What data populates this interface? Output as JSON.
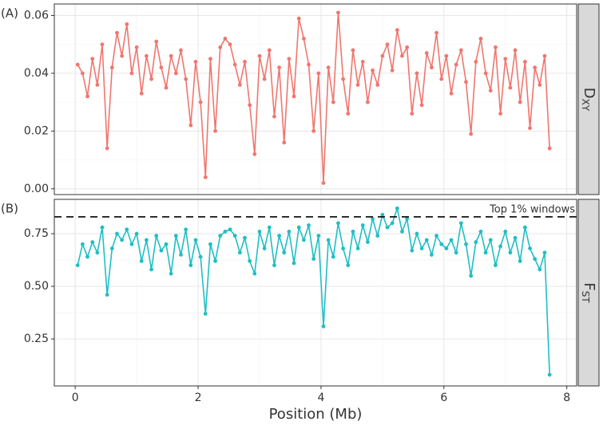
{
  "chart_data": [
    {
      "type": "line",
      "panel_label": "(A)",
      "strip": {
        "main": "D",
        "sub": "XY"
      },
      "color": "#f0766e",
      "x": [
        0.04,
        0.12,
        0.2,
        0.28,
        0.36,
        0.44,
        0.52,
        0.6,
        0.68,
        0.76,
        0.84,
        0.92,
        1.0,
        1.08,
        1.16,
        1.24,
        1.32,
        1.4,
        1.48,
        1.56,
        1.64,
        1.72,
        1.8,
        1.88,
        1.96,
        2.04,
        2.12,
        2.2,
        2.28,
        2.36,
        2.44,
        2.52,
        2.6,
        2.68,
        2.76,
        2.84,
        2.92,
        3.0,
        3.08,
        3.16,
        3.24,
        3.32,
        3.4,
        3.48,
        3.56,
        3.64,
        3.72,
        3.8,
        3.88,
        3.96,
        4.04,
        4.12,
        4.2,
        4.28,
        4.36,
        4.44,
        4.52,
        4.6,
        4.68,
        4.76,
        4.84,
        4.92,
        5.0,
        5.08,
        5.16,
        5.24,
        5.32,
        5.4,
        5.48,
        5.56,
        5.64,
        5.72,
        5.8,
        5.88,
        5.96,
        6.04,
        6.12,
        6.2,
        6.28,
        6.36,
        6.44,
        6.52,
        6.6,
        6.68,
        6.76,
        6.84,
        6.92,
        7.0,
        7.08,
        7.16,
        7.24,
        7.32,
        7.4,
        7.48,
        7.56,
        7.64,
        7.72
      ],
      "values": [
        0.043,
        0.04,
        0.032,
        0.045,
        0.036,
        0.05,
        0.014,
        0.042,
        0.054,
        0.046,
        0.057,
        0.04,
        0.049,
        0.033,
        0.046,
        0.038,
        0.051,
        0.042,
        0.035,
        0.046,
        0.04,
        0.048,
        0.038,
        0.022,
        0.044,
        0.03,
        0.004,
        0.045,
        0.02,
        0.049,
        0.052,
        0.05,
        0.043,
        0.036,
        0.044,
        0.029,
        0.012,
        0.046,
        0.038,
        0.048,
        0.025,
        0.042,
        0.016,
        0.045,
        0.032,
        0.059,
        0.052,
        0.043,
        0.02,
        0.04,
        0.002,
        0.042,
        0.03,
        0.061,
        0.038,
        0.026,
        0.048,
        0.036,
        0.044,
        0.03,
        0.041,
        0.036,
        0.046,
        0.05,
        0.041,
        0.055,
        0.046,
        0.049,
        0.026,
        0.04,
        0.029,
        0.047,
        0.042,
        0.054,
        0.038,
        0.046,
        0.033,
        0.043,
        0.048,
        0.037,
        0.019,
        0.044,
        0.052,
        0.04,
        0.034,
        0.049,
        0.026,
        0.045,
        0.035,
        0.048,
        0.03,
        0.044,
        0.021,
        0.042,
        0.036,
        0.046,
        0.014
      ],
      "xlim": [
        -0.34,
        8.16
      ],
      "xticks": [
        0,
        2,
        4,
        6,
        8
      ],
      "xminor": [
        1,
        3,
        5,
        7
      ],
      "ylim": [
        -0.002,
        0.064
      ],
      "yticks": [
        {
          "value": 0,
          "label": "0.00"
        },
        0.02,
        0.04,
        0.06
      ],
      "yminor": [
        0.01,
        0.03,
        0.05
      ],
      "grid": true
    },
    {
      "type": "line",
      "panel_label": "(B)",
      "strip": {
        "main": "F",
        "sub": "ST"
      },
      "color": "#1fbfc4",
      "x": [
        0.04,
        0.12,
        0.2,
        0.28,
        0.36,
        0.44,
        0.52,
        0.6,
        0.68,
        0.76,
        0.84,
        0.92,
        1.0,
        1.08,
        1.16,
        1.24,
        1.32,
        1.4,
        1.48,
        1.56,
        1.64,
        1.72,
        1.8,
        1.88,
        1.96,
        2.04,
        2.12,
        2.2,
        2.28,
        2.36,
        2.44,
        2.52,
        2.6,
        2.68,
        2.76,
        2.84,
        2.92,
        3.0,
        3.08,
        3.16,
        3.24,
        3.32,
        3.4,
        3.48,
        3.56,
        3.64,
        3.72,
        3.8,
        3.88,
        3.96,
        4.04,
        4.12,
        4.2,
        4.28,
        4.36,
        4.44,
        4.52,
        4.6,
        4.68,
        4.76,
        4.84,
        4.92,
        5.0,
        5.08,
        5.16,
        5.24,
        5.32,
        5.4,
        5.48,
        5.56,
        5.64,
        5.72,
        5.8,
        5.88,
        5.96,
        6.04,
        6.12,
        6.2,
        6.28,
        6.36,
        6.44,
        6.52,
        6.6,
        6.68,
        6.76,
        6.84,
        6.92,
        7.0,
        7.08,
        7.16,
        7.24,
        7.32,
        7.4,
        7.48,
        7.56,
        7.64,
        7.72
      ],
      "values": [
        0.6,
        0.7,
        0.64,
        0.71,
        0.66,
        0.78,
        0.46,
        0.68,
        0.75,
        0.72,
        0.77,
        0.7,
        0.75,
        0.62,
        0.72,
        0.58,
        0.74,
        0.67,
        0.7,
        0.56,
        0.74,
        0.65,
        0.77,
        0.6,
        0.72,
        0.64,
        0.37,
        0.7,
        0.62,
        0.74,
        0.76,
        0.77,
        0.74,
        0.66,
        0.73,
        0.62,
        0.56,
        0.76,
        0.68,
        0.78,
        0.6,
        0.74,
        0.66,
        0.76,
        0.61,
        0.78,
        0.72,
        0.79,
        0.63,
        0.74,
        0.31,
        0.72,
        0.64,
        0.8,
        0.68,
        0.6,
        0.76,
        0.68,
        0.79,
        0.71,
        0.82,
        0.74,
        0.84,
        0.78,
        0.8,
        0.87,
        0.76,
        0.82,
        0.67,
        0.75,
        0.68,
        0.72,
        0.65,
        0.74,
        0.7,
        0.68,
        0.72,
        0.66,
        0.8,
        0.7,
        0.55,
        0.71,
        0.76,
        0.66,
        0.72,
        0.6,
        0.69,
        0.76,
        0.66,
        0.73,
        0.62,
        0.78,
        0.68,
        0.63,
        0.58,
        0.66,
        0.08
      ],
      "xlim": [
        -0.34,
        8.16
      ],
      "xticks": [
        0,
        2,
        4,
        6,
        8
      ],
      "xminor": [
        1,
        3,
        5,
        7
      ],
      "xlabel": "Position (Mb)",
      "ylim": [
        0.027,
        0.913
      ],
      "yticks": [
        0.25,
        {
          "value": 0.5,
          "label": "0.50"
        },
        0.75
      ],
      "yminor": [
        0.375,
        0.625
      ],
      "grid": true,
      "hline": {
        "value": 0.83,
        "label": "Top 1% windows"
      }
    }
  ]
}
